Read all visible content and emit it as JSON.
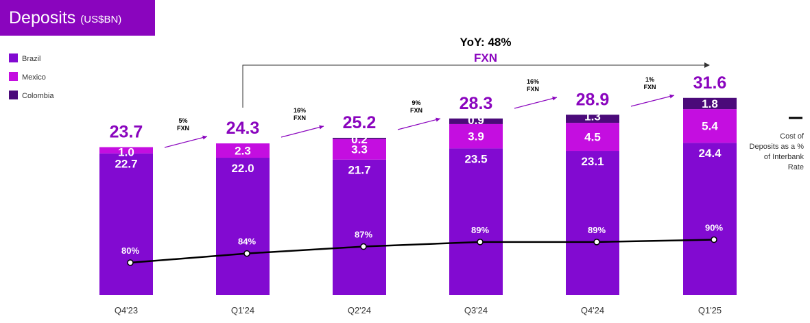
{
  "header": {
    "title": "Deposits",
    "unit": "(US$BN)"
  },
  "colors": {
    "brazil": "#820ad1",
    "mexico": "#c40ee0",
    "colombia": "#4b0a7a",
    "line": "#000000",
    "accent": "#8a05be"
  },
  "chart_data": {
    "type": "bar",
    "stacked": true,
    "categories": [
      "Q4'23",
      "Q1'24",
      "Q2'24",
      "Q3'24",
      "Q4'24",
      "Q1'25"
    ],
    "series": [
      {
        "name": "Brazil",
        "values": [
          22.7,
          22.0,
          21.7,
          23.5,
          23.1,
          24.4
        ],
        "labels": [
          "22.7",
          "22.0",
          "21.7",
          "23.5",
          "23.1",
          "24.4"
        ]
      },
      {
        "name": "Mexico",
        "values": [
          1.0,
          2.3,
          3.3,
          3.9,
          4.5,
          5.4
        ],
        "labels": [
          "1.0",
          "2.3",
          "3.3",
          "3.9",
          "4.5",
          "5.4"
        ]
      },
      {
        "name": "Colombia",
        "values": [
          0.0,
          0.0,
          0.2,
          0.9,
          1.3,
          1.8
        ],
        "labels": [
          "",
          "",
          "0.2",
          "0.9",
          "1.3",
          "1.8"
        ]
      }
    ],
    "totals": [
      "23.7",
      "24.3",
      "25.2",
      "28.3",
      "28.9",
      "31.6"
    ],
    "growth": [
      {
        "pct": "5%",
        "label": "FXN"
      },
      {
        "pct": "16%",
        "label": "FXN"
      },
      {
        "pct": "9%",
        "label": "FXN"
      },
      {
        "pct": "16%",
        "label": "FXN"
      },
      {
        "pct": "1%",
        "label": "FXN"
      }
    ],
    "yoy": {
      "text": "YoY: 48%",
      "label": "FXN"
    },
    "line": {
      "name": "Cost of Deposits as a % of Interbank Rate",
      "name_lines": [
        "Cost of",
        "Deposits as a %",
        "of Interbank",
        "Rate"
      ],
      "values": [
        80,
        84,
        87,
        89,
        89,
        90
      ],
      "labels": [
        "80%",
        "84%",
        "87%",
        "89%",
        "89%",
        "90%"
      ]
    },
    "legend": [
      "Brazil",
      "Mexico",
      "Colombia"
    ],
    "legend_position": "top-left",
    "grid": false
  }
}
